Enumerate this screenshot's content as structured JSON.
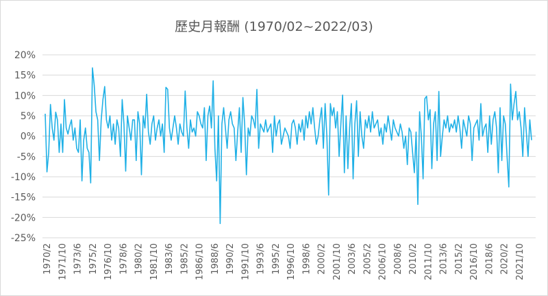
{
  "chart_data": {
    "type": "line",
    "title": "歷史月報酬 (1970/02~2022/03)",
    "xlabel": "",
    "ylabel": "",
    "ylim": [
      -0.25,
      0.2
    ],
    "y_tick_values": [
      0.2,
      0.15,
      0.1,
      0.05,
      0.0,
      -0.05,
      -0.1,
      -0.15,
      -0.2,
      -0.25
    ],
    "y_tick_labels": [
      "20%",
      "15%",
      "10%",
      "5%",
      "0%",
      "-5%",
      "-10%",
      "-15%",
      "-20%",
      "-25%"
    ],
    "x_tick_labels": [
      "1970/2",
      "1971/10",
      "1973/6",
      "1975/2",
      "1976/10",
      "1978/6",
      "1980/2",
      "1981/10",
      "1983/6",
      "1985/2",
      "1986/10",
      "1988/6",
      "1990/2",
      "1991/10",
      "1993/6",
      "1995/2",
      "1996/10",
      "1998/6",
      "2000/2",
      "2001/10",
      "2003/6",
      "2005/2",
      "2006/10",
      "2008/6",
      "2010/2",
      "2011/10",
      "2013/6",
      "2015/2",
      "2016/10",
      "2018/6",
      "2020/2",
      "2021/10"
    ],
    "x_start": "1970/2",
    "x_end": "2022/3",
    "line_color": "#1fb0e6",
    "grid": true,
    "legend": "none",
    "series": [
      {
        "values": [
          0.055,
          -0.088,
          -0.04,
          0.078,
          0.02,
          -0.01,
          0.059,
          0.04,
          -0.04,
          0.03,
          -0.04,
          0.09,
          0.02,
          0.005,
          0.025,
          0.04,
          -0.01,
          0.02,
          -0.03,
          -0.04,
          0.04,
          -0.11,
          -0.01,
          0.02,
          -0.03,
          -0.04,
          -0.115,
          0.168,
          0.126,
          0.06,
          0.04,
          -0.06,
          0.04,
          0.09,
          0.122,
          0.04,
          0.02,
          0.05,
          -0.01,
          0.03,
          -0.02,
          0.04,
          0.02,
          -0.05,
          0.09,
          0.03,
          -0.086,
          0.05,
          0.02,
          -0.01,
          0.04,
          0.04,
          -0.06,
          0.06,
          0.03,
          -0.095,
          0.05,
          0.02,
          0.103,
          0.01,
          -0.02,
          0.03,
          0.05,
          -0.01,
          0.02,
          0.04,
          0.0,
          0.03,
          -0.04,
          0.12,
          0.115,
          0.02,
          -0.01,
          0.02,
          0.05,
          0.02,
          -0.02,
          0.03,
          0.01,
          0.0,
          0.111,
          0.02,
          -0.03,
          0.04,
          0.01,
          0.02,
          0.0,
          0.06,
          0.05,
          0.03,
          0.02,
          0.07,
          -0.06,
          0.05,
          0.074,
          0.02,
          0.136,
          -0.03,
          -0.11,
          0.05,
          -0.215,
          0.03,
          0.07,
          0.02,
          -0.03,
          0.04,
          0.06,
          0.03,
          0.02,
          -0.06,
          0.01,
          0.07,
          -0.04,
          0.095,
          0.03,
          -0.095,
          0.02,
          0.0,
          0.05,
          0.04,
          0.02,
          0.115,
          -0.03,
          0.03,
          0.02,
          0.01,
          0.04,
          0.01,
          0.02,
          0.03,
          -0.04,
          0.05,
          0.0,
          0.03,
          0.04,
          -0.02,
          0.0,
          0.02,
          0.01,
          0.0,
          -0.03,
          0.03,
          0.04,
          0.02,
          -0.02,
          0.03,
          0.01,
          0.04,
          -0.01,
          0.05,
          0.02,
          0.06,
          0.03,
          0.07,
          0.02,
          -0.02,
          0.0,
          0.04,
          0.07,
          -0.03,
          0.08,
          0.0,
          -0.145,
          0.08,
          0.05,
          0.07,
          0.02,
          0.06,
          -0.05,
          0.03,
          0.101,
          -0.09,
          0.05,
          -0.08,
          0.02,
          0.08,
          -0.105,
          0.03,
          0.087,
          -0.05,
          0.06,
          0.0,
          -0.03,
          0.04,
          0.02,
          0.05,
          0.01,
          0.06,
          0.02,
          0.03,
          0.04,
          0.0,
          0.02,
          -0.02,
          0.03,
          0.01,
          0.05,
          0.02,
          -0.01,
          0.04,
          0.02,
          0.01,
          0.0,
          0.03,
          0.01,
          -0.03,
          0.0,
          -0.07,
          0.02,
          0.01,
          -0.04,
          -0.09,
          0.01,
          -0.168,
          0.06,
          0.0,
          -0.105,
          0.092,
          0.098,
          0.04,
          0.065,
          -0.08,
          0.03,
          0.06,
          -0.06,
          0.11,
          -0.05,
          0.0,
          0.04,
          0.02,
          0.05,
          0.01,
          0.03,
          0.02,
          0.04,
          0.01,
          0.05,
          0.02,
          -0.03,
          0.04,
          0.02,
          0.0,
          0.05,
          0.03,
          -0.06,
          0.02,
          0.03,
          0.04,
          -0.01,
          0.08,
          0.0,
          0.02,
          0.03,
          -0.04,
          0.05,
          -0.02,
          0.04,
          0.06,
          0.02,
          -0.09,
          0.07,
          -0.06,
          0.05,
          0.03,
          -0.05,
          -0.125,
          0.128,
          0.04,
          0.08,
          0.11,
          0.04,
          0.06,
          0.02,
          -0.05,
          0.07,
          0.01,
          -0.05,
          0.04,
          -0.01
        ]
      }
    ]
  }
}
